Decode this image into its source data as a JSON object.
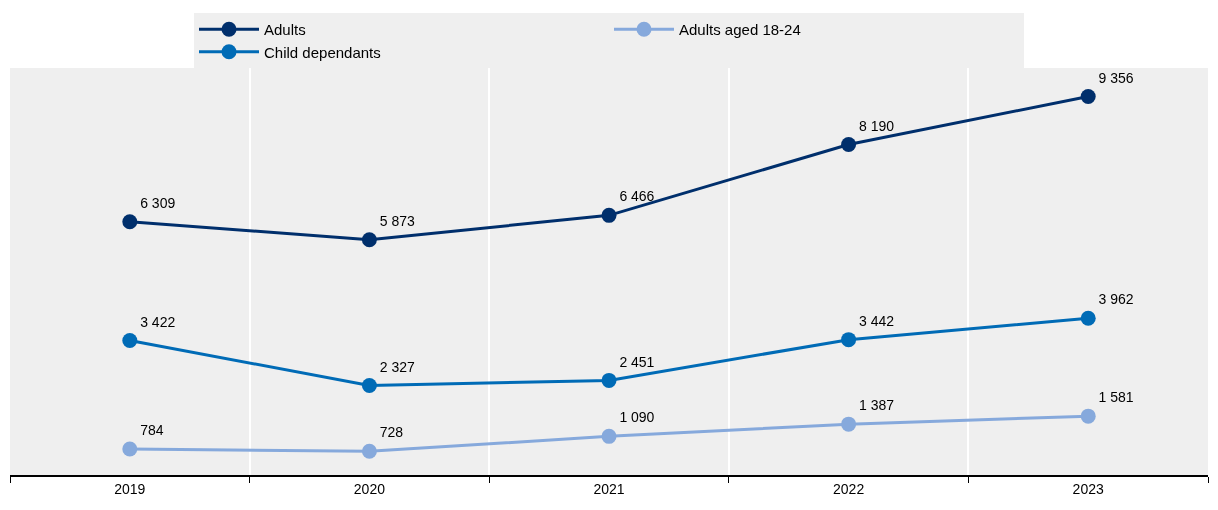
{
  "chart_data": {
    "type": "line",
    "categories": [
      "2019",
      "2020",
      "2021",
      "2022",
      "2023"
    ],
    "series": [
      {
        "name": "Adults",
        "color": "#002f6c",
        "values": [
          6309,
          5873,
          6466,
          8190,
          9356
        ],
        "value_labels": [
          "6 309",
          "5 873",
          "6 466",
          "8 190",
          "9 356"
        ]
      },
      {
        "name": "Adults aged 18-24",
        "color": "#86a9dc",
        "values": [
          784,
          728,
          1090,
          1387,
          1581
        ],
        "value_labels": [
          "784",
          "728",
          "1 090",
          "1 387",
          "1 581"
        ]
      },
      {
        "name": "Child dependants",
        "color": "#006bb6",
        "values": [
          3422,
          2327,
          2451,
          3442,
          3962
        ],
        "value_labels": [
          "3 422",
          "2 327",
          "2 451",
          "3 442",
          "3 962"
        ]
      }
    ],
    "ylim": [
      150,
      10050
    ],
    "grid": "x",
    "legend": "top",
    "marker": "circle",
    "line_style": "solid"
  }
}
